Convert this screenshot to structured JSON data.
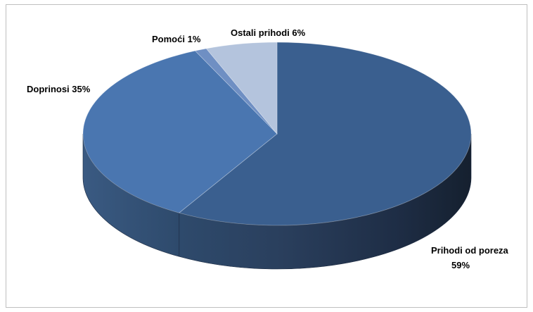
{
  "chart_data": {
    "type": "pie",
    "title": "",
    "style": "3d",
    "slices": [
      {
        "label": "Prihodi od poreza",
        "value_label": "59%",
        "value": 59,
        "color": "#3a5f8f"
      },
      {
        "label": "Doprinosi",
        "value_label": "35%",
        "value": 35,
        "color": "#4a76b0"
      },
      {
        "label": "Pomoći",
        "value_label": "1%",
        "value": 1,
        "color": "#6f8fc3"
      },
      {
        "label": "Ostali prihodi",
        "value_label": "6%",
        "value": 6,
        "color": "#b4c4dd"
      }
    ]
  }
}
